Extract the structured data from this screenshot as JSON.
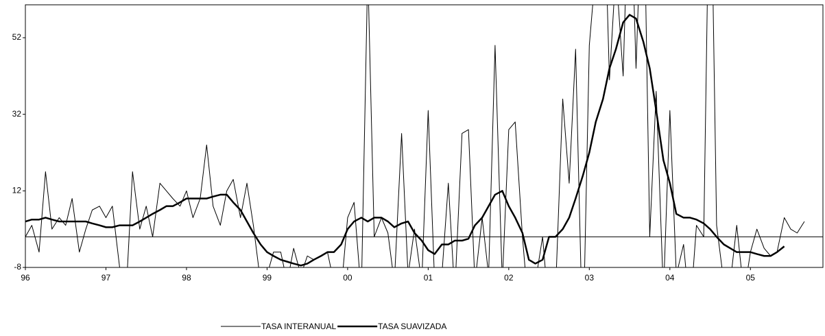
{
  "chart_data": {
    "type": "line",
    "x": [
      96,
      96.08,
      96.17,
      96.25,
      96.33,
      96.42,
      96.5,
      96.58,
      96.67,
      96.75,
      96.83,
      96.92,
      97,
      97.08,
      97.17,
      97.25,
      97.33,
      97.42,
      97.5,
      97.58,
      97.67,
      97.75,
      97.83,
      97.92,
      98,
      98.08,
      98.17,
      98.25,
      98.33,
      98.42,
      98.5,
      98.58,
      98.67,
      98.75,
      98.83,
      98.92,
      99,
      99.08,
      99.17,
      99.25,
      99.33,
      99.42,
      99.5,
      99.58,
      99.67,
      99.75,
      99.83,
      99.92,
      100,
      100.08,
      100.17,
      100.25,
      100.33,
      100.42,
      100.5,
      100.58,
      100.67,
      100.75,
      100.83,
      100.92,
      101,
      101.08,
      101.17,
      101.25,
      101.33,
      101.42,
      101.5,
      101.58,
      101.67,
      101.75,
      101.83,
      101.92,
      102,
      102.08,
      102.17,
      102.25,
      102.33,
      102.42,
      102.5,
      102.58,
      102.67,
      102.75,
      102.83,
      102.92,
      103,
      103.08,
      103.17,
      103.25,
      103.33,
      103.42,
      103.5,
      103.58,
      103.67,
      103.75,
      103.83,
      103.92,
      104,
      104.08,
      104.17,
      104.25,
      104.33,
      104.42,
      104.5,
      104.58,
      104.67,
      104.75,
      104.83,
      104.92,
      105,
      105.08,
      105.17,
      105.25,
      105.33,
      105.42,
      105.5,
      105.58,
      105.67
    ],
    "series": [
      {
        "name": "TASA INTERANUAL",
        "color": "#000000",
        "width": 1,
        "values": [
          0,
          3,
          -4,
          17,
          2,
          5,
          3,
          10,
          -4,
          2,
          7,
          8,
          5,
          8,
          -8,
          -15,
          17,
          2,
          8,
          0,
          14,
          12,
          10,
          8,
          12,
          5,
          10,
          24,
          8,
          3,
          12,
          15,
          5,
          14,
          3,
          -12,
          -10,
          -4,
          -4,
          -12,
          -3,
          -10,
          -5,
          -6,
          -5,
          -4,
          -12,
          -14,
          5,
          9,
          -15,
          70,
          0,
          5,
          1,
          -12,
          27,
          -10,
          2,
          -12,
          33,
          -12,
          -10,
          14,
          -15,
          27,
          28,
          -12,
          5,
          -10,
          50,
          -12,
          28,
          30,
          0,
          -20,
          -12,
          0,
          -20,
          -15,
          36,
          14,
          49,
          -30,
          50,
          70,
          100,
          41,
          70,
          42,
          100,
          44,
          100,
          0,
          38,
          -15,
          33,
          -10,
          -2,
          -20,
          3,
          0,
          110,
          3,
          -12,
          -12,
          3,
          -15,
          -4,
          2,
          -3,
          -5,
          -4,
          5,
          2,
          1,
          4
        ]
      },
      {
        "name": "TASA SUAVIZADA",
        "color": "#000000",
        "width": 2.5,
        "values": [
          4,
          4.5,
          4.5,
          5,
          4.5,
          4,
          4,
          4,
          4,
          4,
          3.5,
          3,
          2.5,
          2.5,
          3,
          3,
          3,
          4,
          5,
          6,
          7,
          8,
          8,
          9,
          10,
          10,
          10,
          10,
          10.5,
          11,
          11,
          9,
          7,
          4,
          1,
          -2,
          -4,
          -5,
          -6,
          -6.5,
          -7,
          -7.5,
          -7,
          -6,
          -5,
          -4,
          -4,
          -2,
          2,
          4,
          5,
          4,
          5,
          5,
          4,
          2.5,
          3.5,
          4,
          1,
          -1,
          -3.5,
          -4.5,
          -2,
          -2,
          -1,
          -1,
          -0.5,
          3,
          5,
          8,
          11,
          12,
          8,
          5,
          1,
          -6,
          -7,
          -6,
          0,
          0,
          2,
          5,
          10,
          16,
          22,
          30,
          36,
          44,
          49,
          56,
          58,
          57,
          51,
          44,
          33,
          20,
          14,
          6,
          5,
          5,
          4.5,
          3.5,
          2,
          0,
          -2,
          -3,
          -4,
          -4,
          -4,
          -4.5,
          -5,
          -5,
          -4,
          -2.5,
          null,
          null,
          null
        ]
      }
    ],
    "xlim": [
      96,
      105.9
    ],
    "xticks": [
      96,
      97,
      98,
      99,
      {
        "value": 100,
        "label": "00"
      },
      {
        "value": 101,
        "label": "01"
      },
      {
        "value": 102,
        "label": "02"
      },
      {
        "value": 103,
        "label": "03"
      },
      {
        "value": 104,
        "label": "04"
      },
      {
        "value": 105,
        "label": "05"
      }
    ],
    "ylim": [
      -8,
      60.6
    ],
    "yticks": [
      -8,
      12,
      32,
      52
    ],
    "reference_line": 0,
    "legend": "bottom"
  }
}
